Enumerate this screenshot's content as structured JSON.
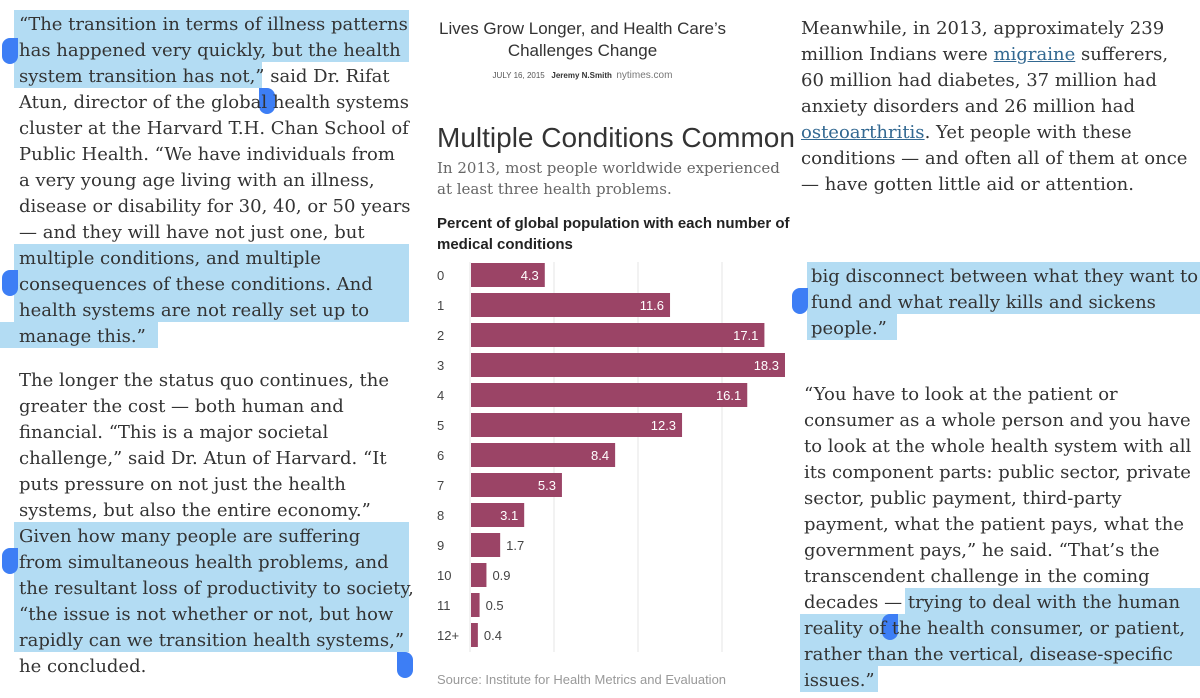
{
  "left_column": {
    "lines": [
      "“The transition in terms of illness patterns",
      "has happened very quickly, but the health",
      "system transition has not,” said Dr. Rifat",
      "Atun, director of the global health systems",
      "cluster at the Harvard T.H. Chan School of",
      "Public Health. “We have individuals from",
      "a very young age living with an illness,",
      "disease or disability for 30, 40, or 50 years",
      "— and they will have not just one, but",
      "multiple conditions, and multiple",
      "consequences of these conditions. And",
      "health systems are not really set up to",
      "manage this.”",
      "The longer the status quo continues, the",
      "greater the cost — both human and",
      "financial. “This is a major societal",
      "challenge,” said Dr. Atun of Harvard. “It",
      "puts pressure on not just the health",
      "systems, but also the entire economy.”",
      "Given how many people are suffering",
      "from simultaneous health problems, and",
      "the resultant loss of productivity to society,",
      "“the issue is not whether or not, but how",
      "rapidly can we transition health systems,”",
      "he concluded."
    ]
  },
  "embed": {
    "title": "Lives Grow Longer, and Health Care’s Challenges Change",
    "date": "JULY 16, 2015",
    "author": "Jeremy N.Smith",
    "site": "nytimes.com"
  },
  "chart_data": {
    "type": "bar",
    "orientation": "horizontal",
    "title": "Multiple Conditions Common",
    "subtitle": "In 2013, most people worldwide experienced at least three health problems.",
    "label": "Percent of global population with each number of medical conditions",
    "categories": [
      "0",
      "1",
      "2",
      "3",
      "4",
      "5",
      "6",
      "7",
      "8",
      "9",
      "10",
      "11",
      "12+"
    ],
    "values": [
      4.3,
      11.6,
      17.1,
      18.3,
      16.1,
      12.3,
      8.4,
      5.3,
      3.1,
      1.7,
      0.9,
      0.5,
      0.4
    ],
    "value_labels": [
      "4.3",
      "11.6",
      "17.1",
      "18.3",
      "16.1",
      "12.3",
      "8.4",
      "5.3",
      "3.1",
      "1.7",
      "0.9",
      "0.5",
      "0.4"
    ],
    "xlim": [
      0,
      18.3
    ],
    "bar_color": "#9b4466",
    "source": "Source: Institute for Health Metrics and Evaluation"
  },
  "right_column": {
    "para1_lines": [
      "Meanwhile, in 2013, approximately 239",
      "million Indians were ",
      "migraine",
      " sufferers,",
      "60 million had diabetes, 37 million had",
      "anxiety disorders and 26 million had",
      "osteoarthritis",
      ". Yet people with these",
      "conditions — and often all of them at once",
      "— have gotten little aid or attention."
    ],
    "para2_lines": [
      "big disconnect between what they want to",
      "fund and what really kills and sickens",
      "people.”"
    ],
    "para3_lines": [
      "“You have to look at the patient or",
      "consumer as a whole person and you have",
      "to look at the whole health system with all",
      "its component parts: public sector, private",
      "sector, public payment, third-party",
      "payment, what the patient pays, what the",
      "government pays,” he said. “That’s the",
      "transcendent challenge in the coming",
      "decades — trying to deal with the human",
      "reality of the health consumer, or patient,",
      "rather than the vertical, disease-specific",
      "issues.”"
    ]
  },
  "colors": {
    "highlight": "#b3dcf3",
    "selection_handle": "#3d7ef5",
    "link": "#326891",
    "text": "#333333"
  }
}
